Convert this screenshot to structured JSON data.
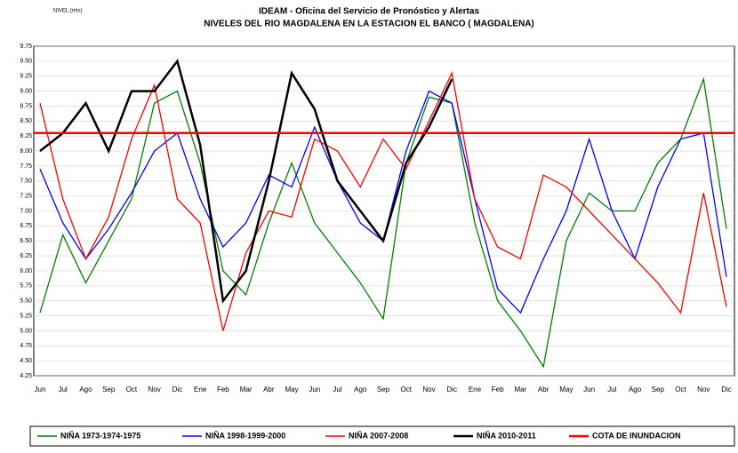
{
  "chart_data": {
    "type": "line",
    "title": "IDEAM - Oficina del Servicio de Pronóstico y Alertas",
    "subtitle": "NIVELES DEL RIO MAGDALENA EN LA ESTACION EL BANCO ( MAGDALENA)",
    "y_label": "NIVEL (mts)",
    "categories": [
      "Jun",
      "Jul",
      "Ago",
      "Sep",
      "Oct",
      "Nov",
      "Dic",
      "Ene",
      "Feb",
      "Mar",
      "Abr",
      "May",
      "Jun",
      "Jul",
      "Ago",
      "Sep",
      "Oct",
      "Nov",
      "Dic",
      "Ene",
      "Feb",
      "Mar",
      "Abr",
      "May",
      "Jun",
      "Jul",
      "Ago",
      "Sep",
      "Oct",
      "Nov",
      "Dic"
    ],
    "series": [
      {
        "name": "NIÑA 1973-1974-1975",
        "color": "#008000",
        "values": [
          5.3,
          6.6,
          5.8,
          6.5,
          7.2,
          8.8,
          9.0,
          7.8,
          6.0,
          5.6,
          6.8,
          7.8,
          6.8,
          6.3,
          5.8,
          5.2,
          7.8,
          8.9,
          8.8,
          6.8,
          5.5,
          5.0,
          4.4,
          6.5,
          7.3,
          7.0,
          7.0,
          7.8,
          8.2,
          9.2,
          6.7
        ]
      },
      {
        "name": "NIÑA 1998-1999-2000",
        "color": "#0000ff",
        "values": [
          7.7,
          6.8,
          6.2,
          6.7,
          7.3,
          8.0,
          8.3,
          7.2,
          6.4,
          6.8,
          7.6,
          7.4,
          8.4,
          7.5,
          6.8,
          6.5,
          8.0,
          9.0,
          8.8,
          7.2,
          5.7,
          5.3,
          6.2,
          7.0,
          8.2,
          7.0,
          6.2,
          7.4,
          8.2,
          8.3,
          5.9
        ]
      },
      {
        "name": "NIÑA 2007-2008",
        "color": "#ff0000",
        "values": [
          8.8,
          7.2,
          6.2,
          6.9,
          8.2,
          9.1,
          7.2,
          6.8,
          5.0,
          6.3,
          7.0,
          6.9,
          8.2,
          8.0,
          7.4,
          8.2,
          7.7,
          8.5,
          9.3,
          7.2,
          6.4,
          6.2,
          7.6,
          7.4,
          7.0,
          6.6,
          6.2,
          5.8,
          5.3,
          7.3,
          5.4
        ]
      },
      {
        "name": "NIÑA 2010-2011",
        "color": "#000000",
        "values": [
          8.0,
          8.3,
          8.8,
          8.0,
          9.0,
          9.0,
          9.5,
          8.1,
          5.5,
          6.0,
          7.5,
          9.3,
          8.7,
          7.5,
          7.0,
          6.5,
          7.8,
          8.4,
          9.2,
          null,
          null,
          null,
          null,
          null,
          null,
          null,
          null,
          null,
          null,
          null,
          null
        ]
      }
    ],
    "reference_lines": [
      {
        "name": "COTA DE INUNDACION",
        "color": "#ff0000",
        "value": 8.3
      }
    ],
    "ylim": [
      4.25,
      9.75
    ],
    "yticks": [
      4.25,
      {
        "value": 4.5,
        "label": "4.50"
      },
      4.75,
      {
        "value": 5,
        "label": "5.00"
      },
      5.25,
      {
        "value": 5.5,
        "label": "5.50"
      },
      5.75,
      {
        "value": 6,
        "label": "6.00"
      },
      6.25,
      {
        "value": 6.5,
        "label": "6.50"
      },
      6.75,
      {
        "value": 7,
        "label": "7.00"
      },
      7.25,
      {
        "value": 7.5,
        "label": "7.50"
      },
      7.75,
      {
        "value": 8,
        "label": "8.00"
      },
      8.25,
      {
        "value": 8.5,
        "label": "8.50"
      },
      8.75,
      {
        "value": 9,
        "label": "9.00"
      },
      9.25,
      {
        "value": 9.5,
        "label": "9.50"
      },
      9.75
    ],
    "grid": true
  }
}
